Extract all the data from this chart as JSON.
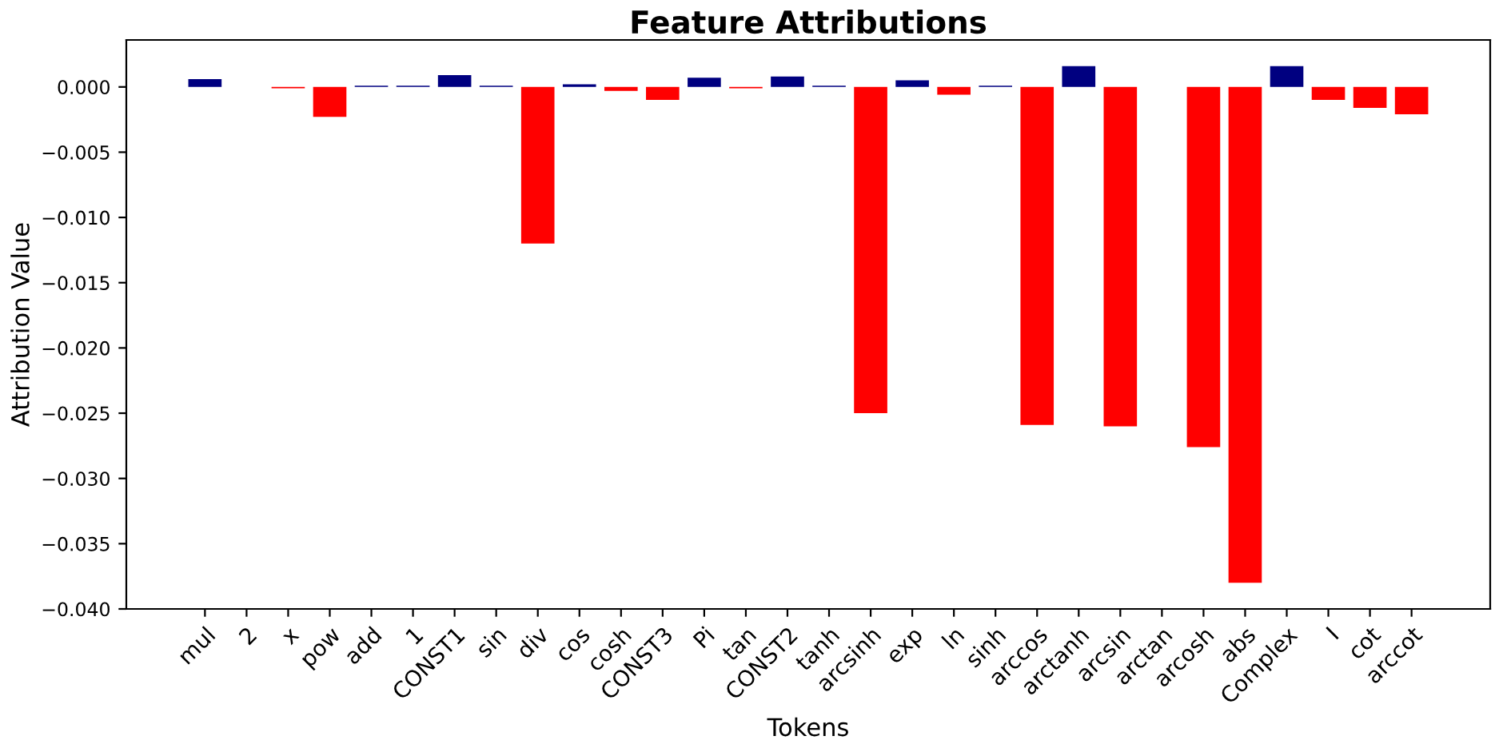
{
  "chart_data": {
    "type": "bar",
    "title": "Feature Attributions",
    "xlabel": "Tokens",
    "ylabel": "Attribution Value",
    "categories": [
      "mul",
      "2",
      "x",
      "pow",
      "add",
      "1",
      "CONST1",
      "sin",
      "div",
      "cos",
      "cosh",
      "CONST3",
      "Pi",
      "tan",
      "CONST2",
      "tanh",
      "arcsinh",
      "exp",
      "ln",
      "sinh",
      "arccos",
      "arctanh",
      "arcsin",
      "arctan",
      "arcosh",
      "abs",
      "Complex",
      "I",
      "cot",
      "arccot"
    ],
    "values": [
      0.0006,
      0,
      -0.0001,
      -0.0023,
      0.0001,
      0.0001,
      0.0009,
      0.0001,
      -0.012,
      0.0002,
      -0.0003,
      -0.001,
      0.0007,
      -0.0001,
      0.0008,
      0.0001,
      -0.025,
      0.0005,
      -0.0006,
      0.0001,
      -0.0259,
      0.0016,
      -0.026,
      0,
      -0.0276,
      -0.038,
      0.0016,
      -0.001,
      -0.0016,
      -0.0021
    ],
    "colors": [
      "#000080",
      "#000080",
      "#ff0000",
      "#ff0000",
      "#000080",
      "#000080",
      "#000080",
      "#000080",
      "#ff0000",
      "#000080",
      "#ff0000",
      "#ff0000",
      "#000080",
      "#ff0000",
      "#000080",
      "#000080",
      "#ff0000",
      "#000080",
      "#ff0000",
      "#000080",
      "#ff0000",
      "#000080",
      "#ff0000",
      "#000080",
      "#ff0000",
      "#ff0000",
      "#000080",
      "#ff0000",
      "#ff0000",
      "#ff0000"
    ],
    "ylim": [
      -0.04,
      0.0036
    ],
    "yticks": [
      {
        "value": 0,
        "label": "0.000"
      },
      {
        "value": -0.005,
        "label": "−0.005"
      },
      {
        "value": -0.01,
        "label": "−0.010"
      },
      {
        "value": -0.015,
        "label": "−0.015"
      },
      {
        "value": -0.02,
        "label": "−0.020"
      },
      {
        "value": -0.025,
        "label": "−0.025"
      },
      {
        "value": -0.03,
        "label": "−0.030"
      },
      {
        "value": -0.035,
        "label": "−0.035"
      },
      {
        "value": -0.04,
        "label": "−0.040"
      }
    ],
    "grid": false
  }
}
